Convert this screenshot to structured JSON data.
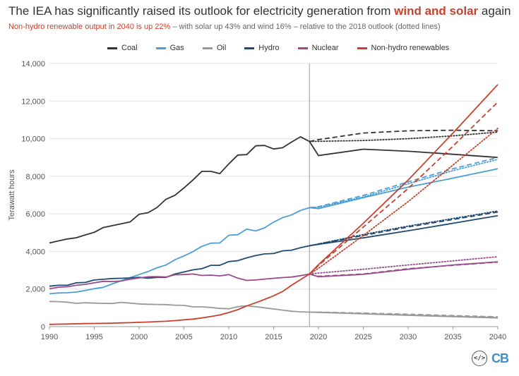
{
  "header": {
    "title_pre": "The IEA has significantly raised its outlook for electricity generation from ",
    "title_highlight": "wind and solar",
    "title_post": " again",
    "subtitle_highlight": "Non-hydro renewable output in 2040 is up 22%",
    "subtitle_rest": " – with solar up 43% and wind 16% – relative to the 2018 outlook (dotted lines)"
  },
  "branding": {
    "embed_glyph": "</>",
    "logo_text": "CB"
  },
  "chart_data": {
    "type": "line",
    "title": "",
    "xlabel": "",
    "ylabel": "Terawatt hours",
    "xlim": [
      1990,
      2040
    ],
    "ylim": [
      0,
      14000
    ],
    "x_ticks": [
      1990,
      1995,
      2000,
      2005,
      2010,
      2015,
      2020,
      2025,
      2030,
      2035,
      2040
    ],
    "y_ticks": [
      0,
      2000,
      4000,
      6000,
      8000,
      10000,
      12000,
      14000
    ],
    "y_tick_labels": [
      "0",
      "2,000",
      "4,000",
      "6,000",
      "8,000",
      "10,000",
      "12,000",
      "14,000"
    ],
    "divider_year": 2019,
    "legend_position": "top",
    "grid": "horizontal",
    "series": [
      {
        "name": "Coal",
        "color": "#333333",
        "historical": [
          [
            1990,
            4450
          ],
          [
            1991,
            4560
          ],
          [
            1992,
            4660
          ],
          [
            1993,
            4730
          ],
          [
            1994,
            4880
          ],
          [
            1995,
            5020
          ],
          [
            1996,
            5270
          ],
          [
            1997,
            5370
          ],
          [
            1998,
            5470
          ],
          [
            1999,
            5570
          ],
          [
            2000,
            5980
          ],
          [
            2001,
            6060
          ],
          [
            2002,
            6340
          ],
          [
            2003,
            6780
          ],
          [
            2004,
            6990
          ],
          [
            2005,
            7380
          ],
          [
            2006,
            7800
          ],
          [
            2007,
            8260
          ],
          [
            2008,
            8260
          ],
          [
            2009,
            8140
          ],
          [
            2010,
            8660
          ],
          [
            2011,
            9130
          ],
          [
            2012,
            9150
          ],
          [
            2013,
            9620
          ],
          [
            2014,
            9640
          ],
          [
            2015,
            9450
          ],
          [
            2016,
            9520
          ],
          [
            2017,
            9820
          ],
          [
            2018,
            10100
          ],
          [
            2019,
            9850
          ]
        ],
        "stated_policies": [
          [
            2019,
            9850
          ],
          [
            2020,
            9100
          ],
          [
            2025,
            9440
          ],
          [
            2030,
            9330
          ],
          [
            2035,
            9170
          ],
          [
            2040,
            9000
          ]
        ],
        "current_policies": [
          [
            2019,
            9850
          ],
          [
            2020,
            9950
          ],
          [
            2025,
            10300
          ],
          [
            2030,
            10420
          ],
          [
            2035,
            10450
          ],
          [
            2040,
            10420
          ]
        ],
        "outlook_2018": [
          [
            2019,
            9850
          ],
          [
            2020,
            9860
          ],
          [
            2025,
            9900
          ],
          [
            2030,
            10000
          ],
          [
            2035,
            10150
          ],
          [
            2040,
            10350
          ]
        ]
      },
      {
        "name": "Gas",
        "color": "#4a9fd5",
        "historical": [
          [
            1990,
            1750
          ],
          [
            1991,
            1790
          ],
          [
            1992,
            1800
          ],
          [
            1993,
            1840
          ],
          [
            1994,
            1920
          ],
          [
            1995,
            2020
          ],
          [
            1996,
            2090
          ],
          [
            1997,
            2270
          ],
          [
            1998,
            2440
          ],
          [
            1999,
            2610
          ],
          [
            2000,
            2770
          ],
          [
            2001,
            2930
          ],
          [
            2002,
            3130
          ],
          [
            2003,
            3280
          ],
          [
            2004,
            3560
          ],
          [
            2005,
            3760
          ],
          [
            2006,
            3990
          ],
          [
            2007,
            4270
          ],
          [
            2008,
            4440
          ],
          [
            2009,
            4450
          ],
          [
            2010,
            4860
          ],
          [
            2011,
            4890
          ],
          [
            2012,
            5190
          ],
          [
            2013,
            5090
          ],
          [
            2014,
            5260
          ],
          [
            2015,
            5560
          ],
          [
            2016,
            5800
          ],
          [
            2017,
            5940
          ],
          [
            2018,
            6180
          ],
          [
            2019,
            6330
          ]
        ],
        "stated_policies": [
          [
            2019,
            6330
          ],
          [
            2020,
            6280
          ],
          [
            2025,
            6860
          ],
          [
            2030,
            7420
          ],
          [
            2035,
            7900
          ],
          [
            2040,
            8400
          ]
        ],
        "current_policies": [
          [
            2019,
            6330
          ],
          [
            2020,
            6380
          ],
          [
            2025,
            6980
          ],
          [
            2030,
            7700
          ],
          [
            2035,
            8400
          ],
          [
            2040,
            9000
          ]
        ],
        "outlook_2018": [
          [
            2019,
            6330
          ],
          [
            2020,
            6350
          ],
          [
            2025,
            6900
          ],
          [
            2030,
            7600
          ],
          [
            2035,
            8300
          ],
          [
            2040,
            8900
          ]
        ]
      },
      {
        "name": "Oil",
        "color": "#999999",
        "historical": [
          [
            1990,
            1340
          ],
          [
            1991,
            1330
          ],
          [
            1992,
            1300
          ],
          [
            1993,
            1240
          ],
          [
            1994,
            1270
          ],
          [
            1995,
            1250
          ],
          [
            1996,
            1240
          ],
          [
            1997,
            1230
          ],
          [
            1998,
            1290
          ],
          [
            1999,
            1250
          ],
          [
            2000,
            1210
          ],
          [
            2001,
            1190
          ],
          [
            2002,
            1180
          ],
          [
            2003,
            1170
          ],
          [
            2004,
            1140
          ],
          [
            2005,
            1130
          ],
          [
            2006,
            1050
          ],
          [
            2007,
            1050
          ],
          [
            2008,
            1020
          ],
          [
            2009,
            970
          ],
          [
            2010,
            950
          ],
          [
            2011,
            1060
          ],
          [
            2012,
            1110
          ],
          [
            2013,
            1060
          ],
          [
            2014,
            1000
          ],
          [
            2015,
            940
          ],
          [
            2016,
            880
          ],
          [
            2017,
            820
          ],
          [
            2018,
            790
          ],
          [
            2019,
            770
          ]
        ],
        "stated_policies": [
          [
            2019,
            770
          ],
          [
            2020,
            760
          ],
          [
            2025,
            680
          ],
          [
            2030,
            600
          ],
          [
            2035,
            530
          ],
          [
            2040,
            460
          ]
        ],
        "current_policies": [
          [
            2019,
            770
          ],
          [
            2020,
            770
          ],
          [
            2025,
            720
          ],
          [
            2030,
            660
          ],
          [
            2035,
            590
          ],
          [
            2040,
            520
          ]
        ],
        "outlook_2018": [
          [
            2019,
            770
          ],
          [
            2020,
            770
          ],
          [
            2025,
            700
          ],
          [
            2030,
            630
          ],
          [
            2035,
            560
          ],
          [
            2040,
            500
          ]
        ]
      },
      {
        "name": "Hydro",
        "color": "#1f4a73",
        "historical": [
          [
            1990,
            2150
          ],
          [
            1991,
            2200
          ],
          [
            1992,
            2200
          ],
          [
            1993,
            2330
          ],
          [
            1994,
            2350
          ],
          [
            1995,
            2480
          ],
          [
            1996,
            2520
          ],
          [
            1997,
            2560
          ],
          [
            1998,
            2570
          ],
          [
            1999,
            2590
          ],
          [
            2000,
            2620
          ],
          [
            2001,
            2580
          ],
          [
            2002,
            2620
          ],
          [
            2003,
            2620
          ],
          [
            2004,
            2800
          ],
          [
            2005,
            2910
          ],
          [
            2006,
            3020
          ],
          [
            2007,
            3080
          ],
          [
            2008,
            3260
          ],
          [
            2009,
            3260
          ],
          [
            2010,
            3460
          ],
          [
            2011,
            3510
          ],
          [
            2012,
            3660
          ],
          [
            2013,
            3780
          ],
          [
            2014,
            3870
          ],
          [
            2015,
            3890
          ],
          [
            2016,
            4030
          ],
          [
            2017,
            4070
          ],
          [
            2018,
            4200
          ],
          [
            2019,
            4300
          ]
        ],
        "stated_policies": [
          [
            2019,
            4300
          ],
          [
            2020,
            4380
          ],
          [
            2025,
            4720
          ],
          [
            2030,
            5100
          ],
          [
            2035,
            5500
          ],
          [
            2040,
            5900
          ]
        ],
        "current_policies": [
          [
            2019,
            4300
          ],
          [
            2020,
            4400
          ],
          [
            2025,
            4850
          ],
          [
            2030,
            5300
          ],
          [
            2035,
            5700
          ],
          [
            2040,
            6100
          ]
        ],
        "outlook_2018": [
          [
            2019,
            4300
          ],
          [
            2020,
            4400
          ],
          [
            2025,
            4900
          ],
          [
            2030,
            5350
          ],
          [
            2035,
            5750
          ],
          [
            2040,
            6150
          ]
        ]
      },
      {
        "name": "Nuclear",
        "color": "#9b4a8c",
        "historical": [
          [
            1990,
            2010
          ],
          [
            1991,
            2100
          ],
          [
            1992,
            2120
          ],
          [
            1993,
            2200
          ],
          [
            1994,
            2250
          ],
          [
            1995,
            2330
          ],
          [
            1996,
            2410
          ],
          [
            1997,
            2400
          ],
          [
            1998,
            2430
          ],
          [
            1999,
            2520
          ],
          [
            2000,
            2590
          ],
          [
            2001,
            2650
          ],
          [
            2002,
            2660
          ],
          [
            2003,
            2640
          ],
          [
            2004,
            2760
          ],
          [
            2005,
            2770
          ],
          [
            2006,
            2800
          ],
          [
            2007,
            2720
          ],
          [
            2008,
            2740
          ],
          [
            2009,
            2700
          ],
          [
            2010,
            2770
          ],
          [
            2011,
            2580
          ],
          [
            2012,
            2460
          ],
          [
            2013,
            2480
          ],
          [
            2014,
            2530
          ],
          [
            2015,
            2570
          ],
          [
            2016,
            2610
          ],
          [
            2017,
            2640
          ],
          [
            2018,
            2710
          ],
          [
            2019,
            2800
          ]
        ],
        "stated_policies": [
          [
            2019,
            2800
          ],
          [
            2020,
            2650
          ],
          [
            2025,
            2780
          ],
          [
            2030,
            3050
          ],
          [
            2035,
            3280
          ],
          [
            2040,
            3450
          ]
        ],
        "current_policies": [
          [
            2019,
            2800
          ],
          [
            2020,
            2680
          ],
          [
            2025,
            2800
          ],
          [
            2030,
            3080
          ],
          [
            2035,
            3260
          ],
          [
            2040,
            3430
          ]
        ],
        "outlook_2018": [
          [
            2019,
            2800
          ],
          [
            2020,
            2850
          ],
          [
            2025,
            3050
          ],
          [
            2030,
            3280
          ],
          [
            2035,
            3500
          ],
          [
            2040,
            3720
          ]
        ]
      },
      {
        "name": "Non-hydro renewables",
        "color": "#c8412c",
        "historical": [
          [
            1990,
            120
          ],
          [
            1991,
            130
          ],
          [
            1992,
            140
          ],
          [
            1993,
            150
          ],
          [
            1994,
            160
          ],
          [
            1995,
            170
          ],
          [
            1996,
            175
          ],
          [
            1997,
            185
          ],
          [
            1998,
            200
          ],
          [
            1999,
            210
          ],
          [
            2000,
            230
          ],
          [
            2001,
            245
          ],
          [
            2002,
            265
          ],
          [
            2003,
            285
          ],
          [
            2004,
            320
          ],
          [
            2005,
            360
          ],
          [
            2006,
            400
          ],
          [
            2007,
            460
          ],
          [
            2008,
            540
          ],
          [
            2009,
            620
          ],
          [
            2010,
            750
          ],
          [
            2011,
            900
          ],
          [
            2012,
            1100
          ],
          [
            2013,
            1270
          ],
          [
            2014,
            1450
          ],
          [
            2015,
            1640
          ],
          [
            2016,
            1870
          ],
          [
            2017,
            2200
          ],
          [
            2018,
            2500
          ],
          [
            2019,
            2800
          ]
        ],
        "stated_policies": [
          [
            2019,
            2800
          ],
          [
            2020,
            3300
          ],
          [
            2025,
            5500
          ],
          [
            2030,
            7800
          ],
          [
            2035,
            10300
          ],
          [
            2040,
            12880
          ]
        ],
        "current_policies": [
          [
            2019,
            2800
          ],
          [
            2020,
            3250
          ],
          [
            2025,
            5300
          ],
          [
            2030,
            7350
          ],
          [
            2035,
            9600
          ],
          [
            2040,
            11950
          ]
        ],
        "outlook_2018": [
          [
            2019,
            2800
          ],
          [
            2020,
            3100
          ],
          [
            2025,
            4850
          ],
          [
            2030,
            6650
          ],
          [
            2035,
            8600
          ],
          [
            2040,
            10550
          ]
        ]
      }
    ]
  }
}
